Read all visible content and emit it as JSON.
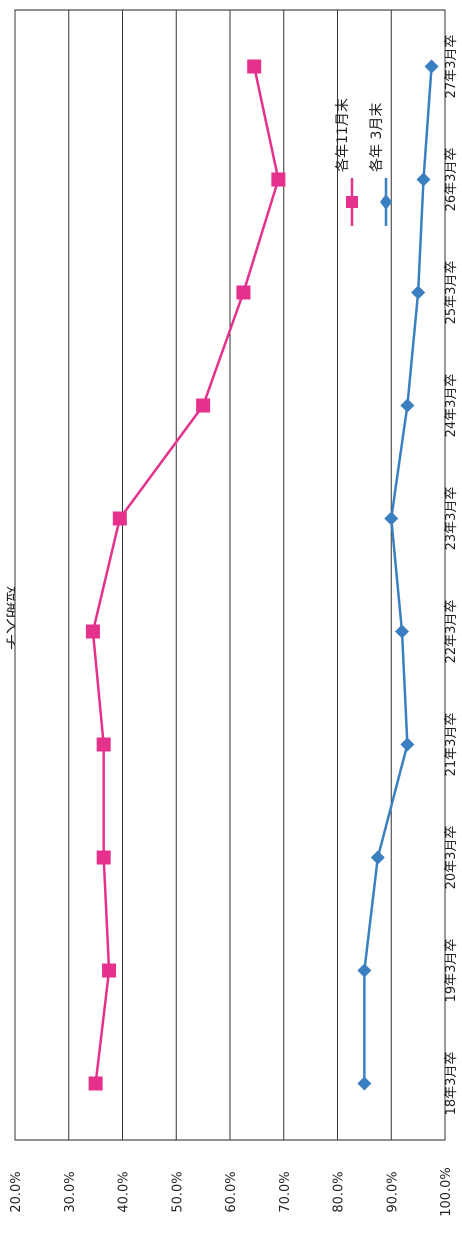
{
  "chart_data": {
    "type": "line",
    "title": "短期大学",
    "categories": [
      "18年3月卒",
      "19年3月卒",
      "20年3月卒",
      "21年3月卒",
      "22年3月卒",
      "23年3月卒",
      "24年3月卒",
      "25年3月卒",
      "26年3月卒",
      "27年3月卒"
    ],
    "y_ticks": [
      "20.0%",
      "30.0%",
      "40.0%",
      "50.0%",
      "60.0%",
      "70.0%",
      "80.0%",
      "90.0%",
      "100.0%"
    ],
    "ylim": [
      20,
      100
    ],
    "grid": true,
    "legend_position": "right",
    "series": [
      {
        "name": "各年11月末",
        "color": "#e5318c",
        "marker": "square",
        "values": [
          35.0,
          37.5,
          36.5,
          36.5,
          34.5,
          39.5,
          55.0,
          62.5,
          69.0,
          64.5
        ]
      },
      {
        "name": "各年 3月末",
        "color": "#3a7fc0",
        "marker": "diamond",
        "values": [
          85.0,
          85.0,
          87.5,
          93.0,
          92.0,
          90.0,
          93.0,
          95.0,
          96.0,
          97.5
        ]
      }
    ]
  }
}
